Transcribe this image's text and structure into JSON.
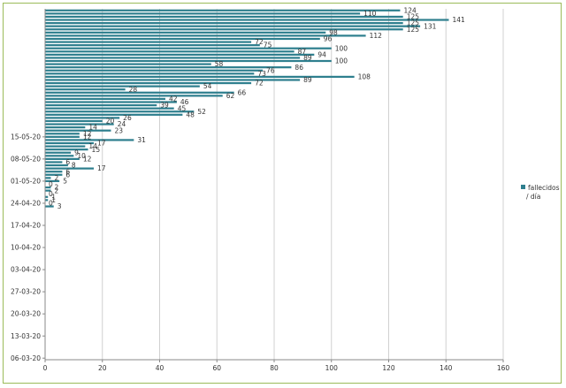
{
  "chart_data": {
    "type": "bar",
    "orientation": "horizontal",
    "title": "",
    "xlabel": "",
    "ylabel": "",
    "xlim": [
      0,
      160
    ],
    "xticks": [
      0,
      20,
      40,
      60,
      80,
      100,
      120,
      140,
      160
    ],
    "grid": true,
    "legend_position": "right",
    "series": [
      {
        "name": "fallecidos / día",
        "legend_lines": [
          "fallecidos",
          "/ día"
        ],
        "color": "#2e7f8e",
        "values": [
          0,
          0,
          0,
          0,
          0,
          0,
          0,
          0,
          0,
          0,
          0,
          0,
          0,
          0,
          0,
          0,
          0,
          0,
          0,
          0,
          0,
          0,
          0,
          0,
          0,
          0,
          0,
          0,
          0,
          0,
          0,
          0,
          0,
          0,
          0,
          0,
          0,
          0,
          0,
          0,
          0,
          0,
          0,
          0,
          0,
          0,
          0,
          0,
          3,
          0,
          1,
          1,
          0,
          2,
          2,
          0,
          5,
          2,
          6,
          6,
          17,
          8,
          6,
          12,
          10,
          9,
          15,
          14,
          17,
          31,
          12,
          12,
          23,
          14,
          24,
          20,
          26,
          48,
          52,
          45,
          39,
          46,
          42,
          62,
          66,
          28,
          54,
          72,
          89,
          108,
          73,
          76,
          86,
          58,
          100,
          89,
          94,
          87,
          100,
          75,
          72,
          96,
          112,
          98,
          125,
          131,
          125,
          141,
          125,
          110,
          124
        ]
      }
    ],
    "y_tick_labels": [
      "06-03-20",
      "13-03-20",
      "20-03-20",
      "27-03-20",
      "03-04-20",
      "10-04-20",
      "17-04-20",
      "24-04-20",
      "01-05-20",
      "08-05-20",
      "15-05-20"
    ],
    "y_tick_positions": [
      0,
      7,
      14,
      21,
      28,
      35,
      42,
      49,
      56,
      63,
      70
    ],
    "bars_visible_start": 48
  }
}
